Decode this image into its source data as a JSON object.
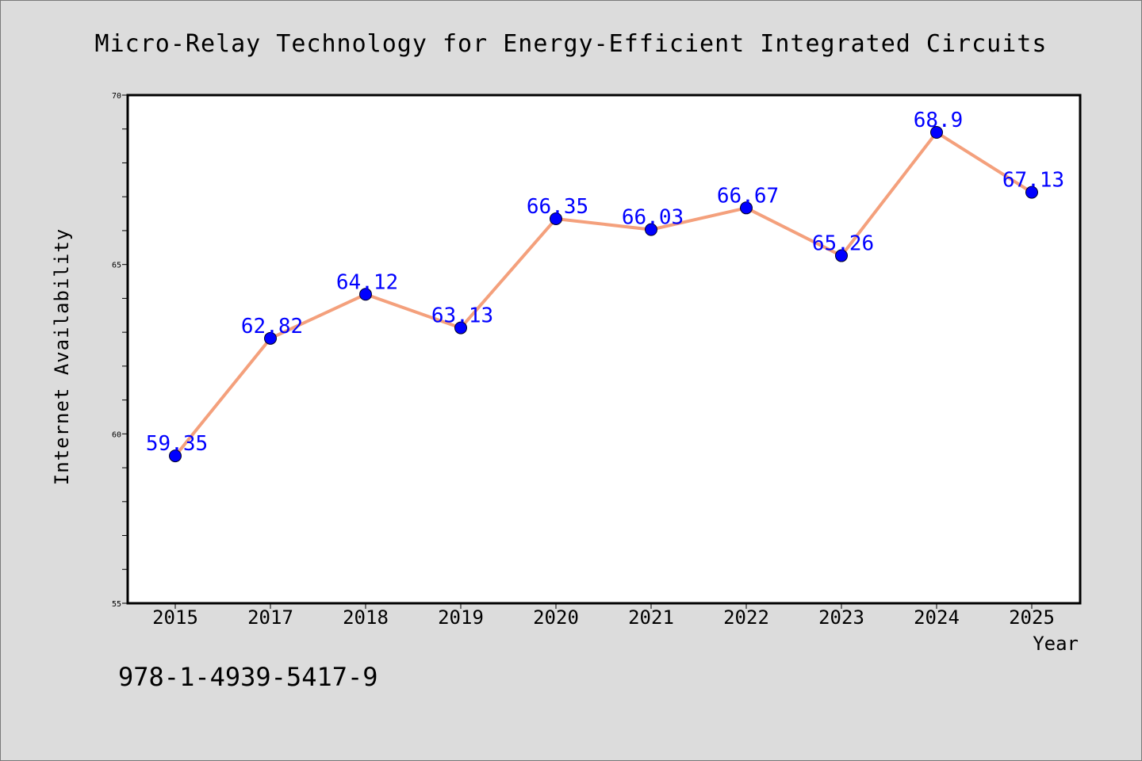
{
  "chart_data": {
    "type": "line",
    "title": "Micro-Relay Technology for Energy-Efficient Integrated Circuits",
    "xlabel": "Year",
    "ylabel": "Internet Availability",
    "categories": [
      "2015",
      "2017",
      "2018",
      "2019",
      "2020",
      "2021",
      "2022",
      "2023",
      "2024",
      "2025"
    ],
    "values": [
      59.35,
      62.82,
      64.12,
      63.13,
      66.35,
      66.03,
      66.67,
      65.26,
      68.9,
      67.13
    ],
    "data_labels": [
      "59.35",
      "62.82",
      "64.12",
      "63.13",
      "66.35",
      "66.03",
      "66.67",
      "65.26",
      "68.9",
      "67.13"
    ],
    "ylim": [
      55,
      70
    ],
    "y_ticks": [
      "55",
      "60",
      "65",
      "70"
    ],
    "y_tick_values": [
      55,
      60,
      65,
      70
    ],
    "y_minor_step": 1,
    "grid": false,
    "legend": "none",
    "line_color": "#f4a07c",
    "marker_color": "#0000ff",
    "label_color": "#0000ff",
    "plot_background": "#ffffff",
    "figure_background": "#dcdcdc"
  },
  "footer": {
    "isbn": "978-1-4939-5417-9"
  }
}
